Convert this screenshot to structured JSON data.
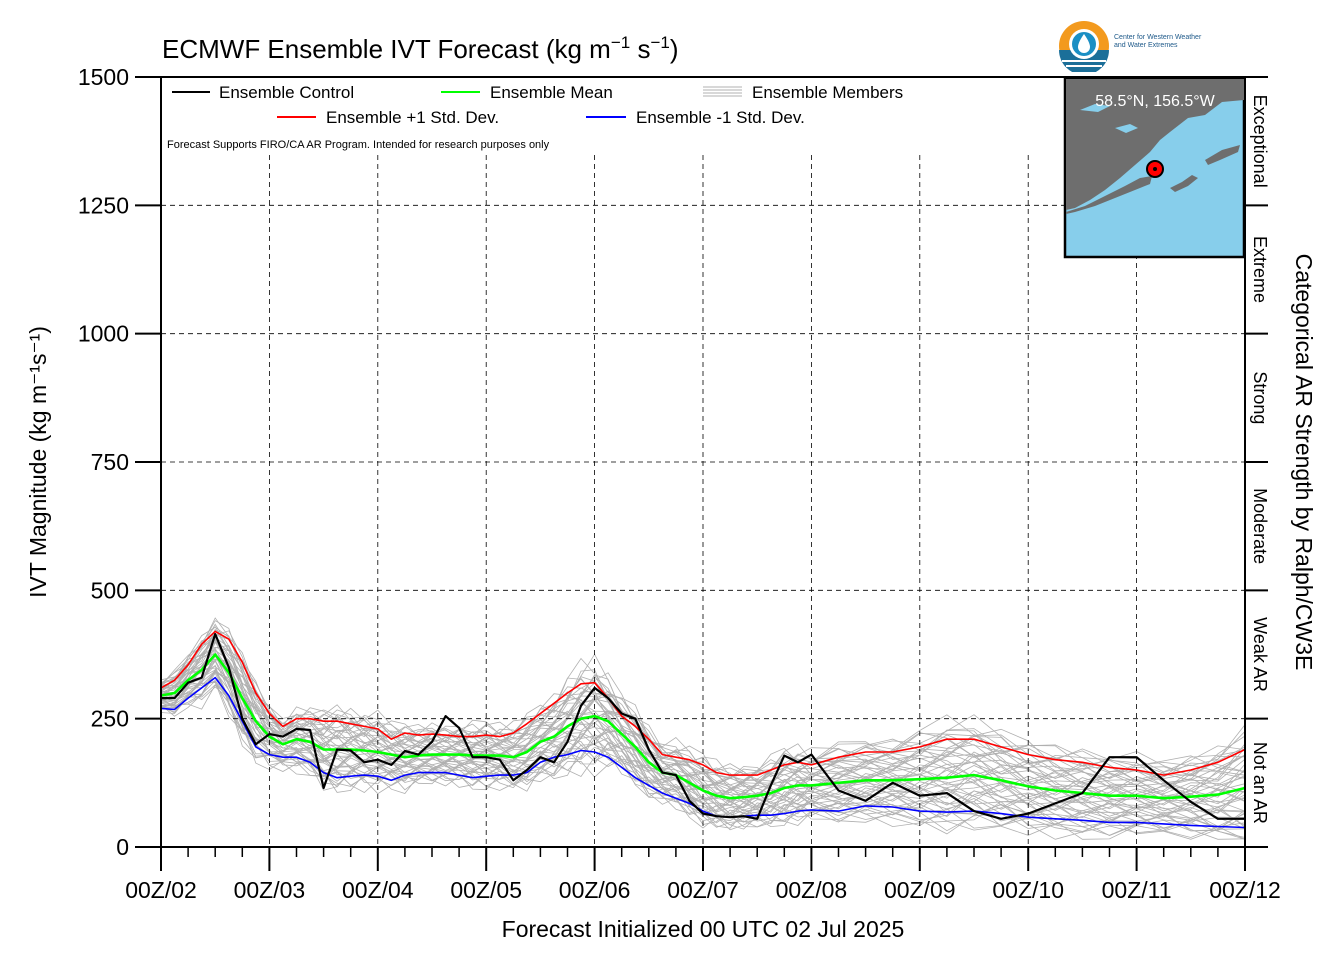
{
  "header": {
    "title": "ECMWF Ensemble IVT Forecast (kg m",
    "title_sup1": "−1",
    "title_mid": " s",
    "title_sup2": "−1",
    "title_end": ")"
  },
  "logo": {
    "line1": "Center for Western Weather",
    "line2": "and Water Extremes"
  },
  "legend": {
    "control": "Ensemble Control",
    "mean": "Ensemble Mean",
    "members": "Ensemble Members",
    "plus_sd": "Ensemble +1 Std. Dev.",
    "minus_sd": "Ensemble -1 Std. Dev.",
    "note": "Forecast Supports FIRO/CA AR Program. Intended for research purposes only"
  },
  "inset": {
    "location": "58.5°N, 156.5°W"
  },
  "right_axis": {
    "title": "Categorical AR Strength by Ralph/CW3E",
    "categories": [
      "Not an AR",
      "Weak AR",
      "Moderate",
      "Strong",
      "Extreme",
      "Exceptional"
    ],
    "boundaries": [
      0,
      250,
      500,
      750,
      1000,
      1250,
      1500
    ]
  },
  "colors": {
    "control": "#000000",
    "mean": "#00ff00",
    "plus_sd": "#ff0000",
    "minus_sd": "#0000ff",
    "members": "#b0b0b0",
    "inset_water": "#87ceeb",
    "inset_land": "#6e6e6e"
  },
  "chart_data": {
    "type": "line",
    "xlabel": "Forecast Initialized 00 UTC 02 Jul 2025",
    "ylabel": "IVT Magnitude (kg m⁻¹s⁻¹)",
    "ylim": [
      0,
      1500
    ],
    "yticks": [
      0,
      250,
      500,
      750,
      1000,
      1250,
      1500
    ],
    "xlim": [
      0,
      240
    ],
    "xtick_labels": [
      "00Z/02",
      "00Z/03",
      "00Z/04",
      "00Z/05",
      "00Z/06",
      "00Z/07",
      "00Z/08",
      "00Z/09",
      "00Z/10",
      "00Z/11",
      "00Z/12"
    ],
    "x_unit": "forecast hour",
    "grid": true,
    "legend_placement": "top-left",
    "series": [
      {
        "name": "Ensemble Control",
        "x": [
          0,
          3,
          6,
          9,
          12,
          15,
          18,
          21,
          24,
          27,
          30,
          33,
          36,
          39,
          42,
          45,
          48,
          51,
          54,
          57,
          60,
          63,
          66,
          69,
          72,
          75,
          78,
          81,
          84,
          87,
          90,
          93,
          96,
          99,
          102,
          105,
          108,
          111,
          114,
          117,
          120,
          123,
          126,
          129,
          132,
          135,
          138,
          141,
          144,
          150,
          156,
          162,
          168,
          174,
          180,
          186,
          192,
          198,
          204,
          210,
          216,
          222,
          228,
          234,
          240
        ],
        "y": [
          290,
          290,
          320,
          330,
          415,
          350,
          250,
          200,
          220,
          215,
          230,
          228,
          115,
          190,
          188,
          165,
          170,
          160,
          187,
          180,
          205,
          255,
          232,
          175,
          175,
          170,
          130,
          150,
          175,
          165,
          205,
          275,
          310,
          290,
          260,
          250,
          190,
          145,
          140,
          90,
          65,
          60,
          58,
          60,
          55,
          120,
          178,
          165,
          180,
          110,
          90,
          125,
          100,
          105,
          70,
          55,
          65,
          85,
          105,
          175,
          175,
          130,
          88,
          55,
          55
        ]
      },
      {
        "name": "Ensemble Mean",
        "x": [
          0,
          3,
          6,
          9,
          12,
          15,
          18,
          21,
          24,
          27,
          30,
          33,
          36,
          39,
          42,
          45,
          48,
          51,
          54,
          57,
          60,
          63,
          66,
          69,
          72,
          75,
          78,
          81,
          84,
          87,
          90,
          93,
          96,
          99,
          102,
          105,
          108,
          111,
          114,
          117,
          120,
          123,
          126,
          129,
          132,
          135,
          138,
          141,
          144,
          150,
          156,
          162,
          168,
          174,
          180,
          186,
          192,
          198,
          204,
          210,
          216,
          222,
          228,
          234,
          240
        ],
        "y": [
          295,
          300,
          325,
          345,
          375,
          340,
          290,
          245,
          215,
          200,
          210,
          205,
          190,
          190,
          190,
          188,
          185,
          180,
          175,
          178,
          180,
          180,
          180,
          178,
          178,
          178,
          175,
          185,
          205,
          215,
          235,
          250,
          255,
          245,
          220,
          195,
          165,
          145,
          140,
          125,
          110,
          100,
          95,
          97,
          100,
          105,
          115,
          120,
          120,
          125,
          130,
          130,
          132,
          135,
          140,
          130,
          118,
          110,
          105,
          100,
          100,
          95,
          98,
          102,
          115
        ]
      },
      {
        "name": "Ensemble +1 Std. Dev.",
        "x": [
          0,
          3,
          6,
          9,
          12,
          15,
          18,
          21,
          24,
          27,
          30,
          33,
          36,
          39,
          42,
          45,
          48,
          51,
          54,
          57,
          60,
          63,
          66,
          69,
          72,
          75,
          78,
          81,
          84,
          87,
          90,
          93,
          96,
          99,
          102,
          105,
          108,
          111,
          114,
          117,
          120,
          123,
          126,
          129,
          132,
          135,
          138,
          141,
          144,
          150,
          156,
          162,
          168,
          174,
          180,
          186,
          192,
          198,
          204,
          210,
          216,
          222,
          228,
          234,
          240
        ],
        "y": [
          310,
          325,
          355,
          395,
          420,
          405,
          360,
          300,
          260,
          235,
          250,
          250,
          245,
          245,
          240,
          235,
          230,
          210,
          222,
          218,
          220,
          218,
          215,
          215,
          218,
          215,
          222,
          240,
          260,
          280,
          300,
          318,
          320,
          290,
          255,
          235,
          210,
          180,
          175,
          170,
          160,
          145,
          140,
          140,
          140,
          150,
          160,
          165,
          160,
          175,
          185,
          185,
          195,
          210,
          210,
          195,
          180,
          170,
          165,
          155,
          150,
          140,
          150,
          165,
          190
        ]
      },
      {
        "name": "Ensemble -1 Std. Dev.",
        "x": [
          0,
          3,
          6,
          9,
          12,
          15,
          18,
          21,
          24,
          27,
          30,
          33,
          36,
          39,
          42,
          45,
          48,
          51,
          54,
          57,
          60,
          63,
          66,
          69,
          72,
          75,
          78,
          81,
          84,
          87,
          90,
          93,
          96,
          99,
          102,
          105,
          108,
          111,
          114,
          117,
          120,
          123,
          126,
          129,
          132,
          135,
          138,
          141,
          144,
          150,
          156,
          162,
          168,
          174,
          180,
          186,
          192,
          198,
          204,
          210,
          216,
          222,
          228,
          234,
          240
        ],
        "y": [
          270,
          268,
          290,
          310,
          330,
          295,
          245,
          195,
          180,
          175,
          175,
          165,
          145,
          135,
          138,
          140,
          138,
          130,
          140,
          145,
          145,
          145,
          140,
          135,
          138,
          140,
          140,
          145,
          165,
          175,
          180,
          188,
          185,
          175,
          155,
          135,
          120,
          105,
          95,
          85,
          70,
          60,
          58,
          60,
          62,
          62,
          65,
          70,
          72,
          70,
          80,
          78,
          70,
          68,
          70,
          65,
          58,
          55,
          52,
          48,
          48,
          45,
          42,
          40,
          38
        ]
      }
    ]
  }
}
